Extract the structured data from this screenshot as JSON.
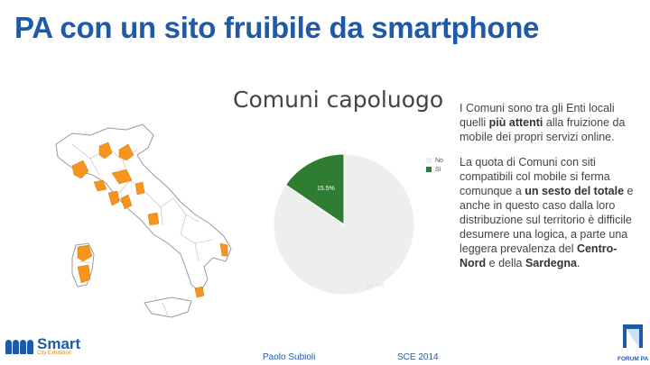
{
  "slide": {
    "title": "PA con un sito fruibile da smartphone"
  },
  "chart_data": {
    "type": "pie",
    "title": "Comuni capoluogo",
    "categories": [
      "No",
      "Sì"
    ],
    "values": [
      84.5,
      15.5
    ],
    "labels": [
      "84.5%",
      "15.5%"
    ],
    "colors": [
      "#eeeeee",
      "#2e7d32"
    ],
    "legend_position": "top-right"
  },
  "map": {
    "highlight_color": "#f7941d",
    "base_color": "#ffffff",
    "border_color": "#9a9a9a"
  },
  "body_text": {
    "p1_a": "I Comuni sono tra gli Enti locali quelli ",
    "p1_b": "più attenti",
    "p1_c": " alla fruizione da mobile dei propri servizi online.",
    "p2_a": "La quota di Comuni con siti compatibili col mobile si ferma comunque a ",
    "p2_b": "un sesto del totale",
    "p2_c": " e anche in questo caso dalla loro distribuzione sul territorio è difficile desumere una logica, a parte una leggera prevalenza del ",
    "p2_d": "Centro-Nord",
    "p2_e": " e della ",
    "p2_f": "Sardegna",
    "p2_g": "."
  },
  "footer": {
    "author": "Paolo Subioli",
    "event": "SCE 2014"
  },
  "logos": {
    "left_brand": "Smart",
    "left_sub": "City Exhibition",
    "right_brand": "FORUM PA"
  }
}
